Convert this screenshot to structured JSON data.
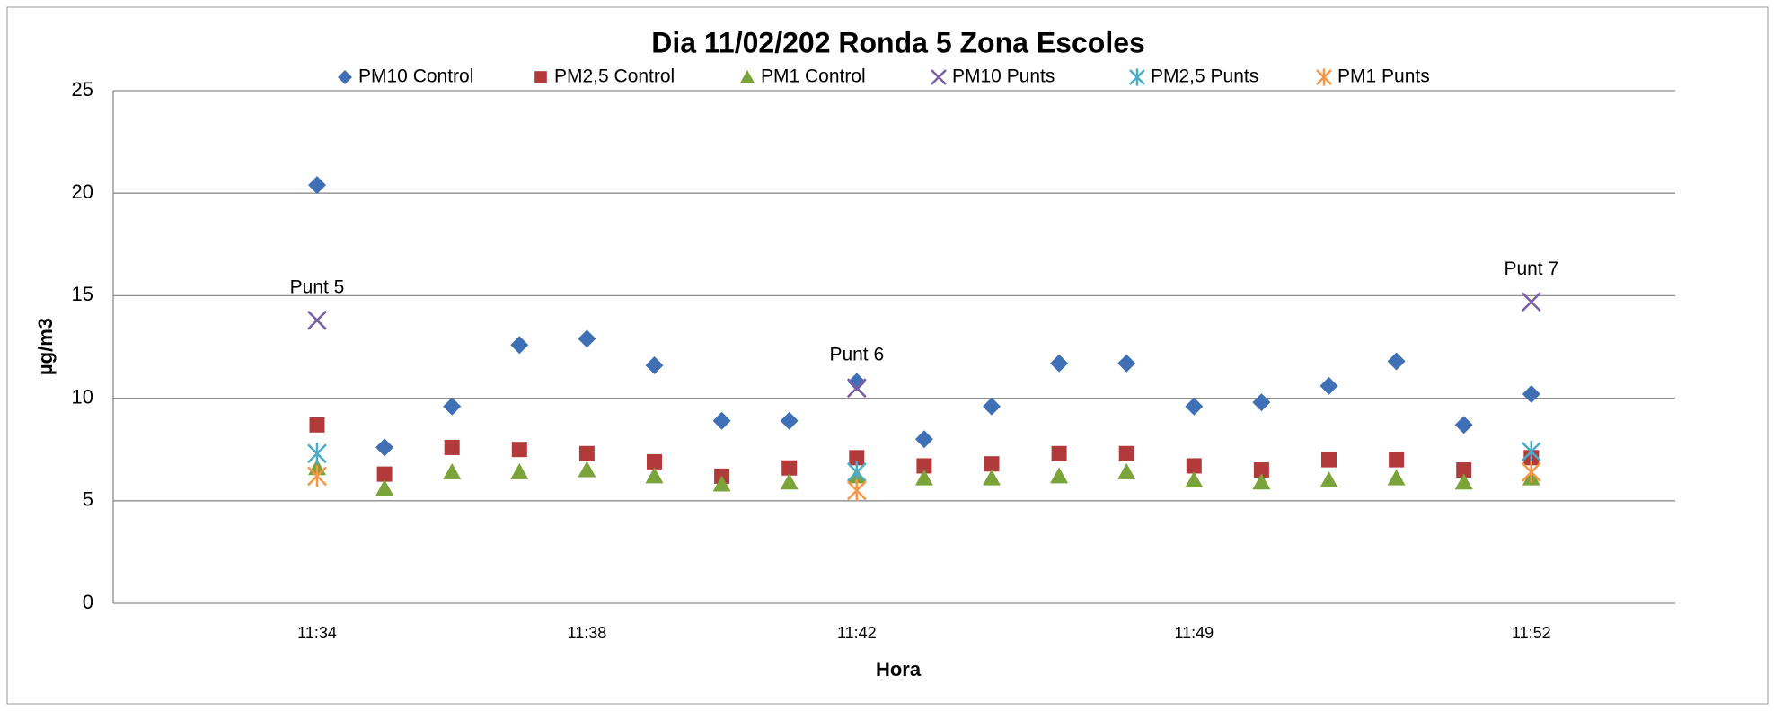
{
  "chart_data": {
    "type": "scatter",
    "title": "Dia 11/02/202 Ronda 5 Zona Escoles",
    "xlabel": "Hora",
    "ylabel": "µg/m3",
    "categories": [
      "11:34",
      null,
      null,
      null,
      "11:38",
      null,
      null,
      null,
      "11:42",
      null,
      null,
      null,
      null,
      "11:49",
      null,
      null,
      null,
      null,
      "11:52"
    ],
    "ylim": [
      0,
      25
    ],
    "yticks": [
      0,
      5,
      10,
      15,
      20,
      25
    ],
    "grid": true,
    "legend": "top",
    "series": [
      {
        "name": "PM10 Control",
        "color": "#3f6fb5",
        "marker": "diamond",
        "values": [
          20.4,
          7.6,
          9.6,
          12.6,
          12.9,
          11.6,
          8.9,
          8.9,
          10.8,
          8.0,
          9.6,
          11.7,
          11.7,
          9.6,
          9.8,
          10.6,
          11.8,
          8.7,
          10.2
        ]
      },
      {
        "name": "PM2,5 Control",
        "color": "#b23a3a",
        "marker": "square",
        "values": [
          8.7,
          6.3,
          7.6,
          7.5,
          7.3,
          6.9,
          6.2,
          6.6,
          7.1,
          6.7,
          6.8,
          7.3,
          7.3,
          6.7,
          6.5,
          7.0,
          7.0,
          6.5,
          7.1
        ]
      },
      {
        "name": "PM1 Control",
        "color": "#7aa33a",
        "marker": "triangle",
        "values": [
          6.6,
          5.6,
          6.4,
          6.4,
          6.5,
          6.2,
          5.8,
          5.9,
          6.2,
          6.1,
          6.1,
          6.2,
          6.4,
          6.0,
          5.9,
          6.0,
          6.1,
          5.9,
          6.1
        ]
      },
      {
        "name": "PM10 Punts",
        "color": "#7b5ea7",
        "marker": "x",
        "values": [
          13.8,
          null,
          null,
          null,
          null,
          null,
          null,
          null,
          10.5,
          null,
          null,
          null,
          null,
          null,
          null,
          null,
          null,
          null,
          14.7
        ]
      },
      {
        "name": "PM2,5 Punts",
        "color": "#4bacc6",
        "marker": "star",
        "values": [
          7.3,
          null,
          null,
          null,
          null,
          null,
          null,
          null,
          6.4,
          null,
          null,
          null,
          null,
          null,
          null,
          null,
          null,
          null,
          7.4
        ]
      },
      {
        "name": "PM1 Punts",
        "color": "#f79646",
        "marker": "star",
        "values": [
          6.2,
          null,
          null,
          null,
          null,
          null,
          null,
          null,
          5.5,
          null,
          null,
          null,
          null,
          null,
          null,
          null,
          null,
          null,
          6.4
        ]
      }
    ],
    "annotations": [
      "Punt 5",
      "Punt 6",
      "Punt 7"
    ]
  }
}
